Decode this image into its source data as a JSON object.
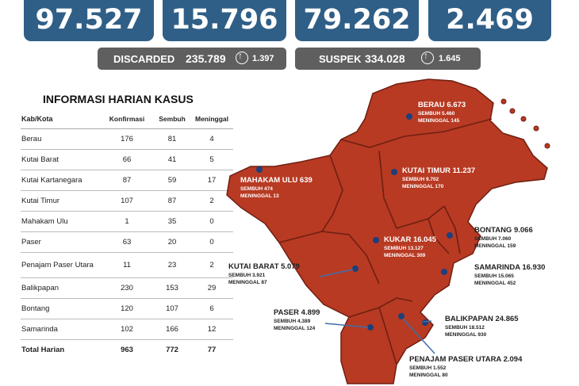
{
  "top_stats": [
    "97.527",
    "15.796",
    "79.262",
    "2.469"
  ],
  "discarded": {
    "label": "DISCARDED",
    "value": "235.789",
    "change": "1.397"
  },
  "suspek": {
    "label": "SUSPEK",
    "value": "334.028",
    "change": "1.645"
  },
  "table": {
    "title": "INFORMASI HARIAN KASUS",
    "headers": [
      "Kab/Kota",
      "Konfirmasi",
      "Sembuh",
      "Meninggal"
    ],
    "rows": [
      [
        "Berau",
        "176",
        "81",
        "4"
      ],
      [
        "Kutai Barat",
        "66",
        "41",
        "5"
      ],
      [
        "Kutai Kartanegara",
        "87",
        "59",
        "17"
      ],
      [
        "Kutai Timur",
        "107",
        "87",
        "2"
      ],
      [
        "Mahakam Ulu",
        "1",
        "35",
        "0"
      ],
      [
        "Paser",
        "63",
        "20",
        "0"
      ],
      [
        "Penajam Paser Utara",
        "11",
        "23",
        "2"
      ],
      [
        "Balikpapan",
        "230",
        "153",
        "29"
      ],
      [
        "Bontang",
        "120",
        "107",
        "6"
      ],
      [
        "Samarinda",
        "102",
        "166",
        "12"
      ]
    ],
    "total": [
      "Total Harian",
      "963",
      "772",
      "77"
    ]
  },
  "regions": {
    "berau": {
      "title": "BERAU  6.673",
      "sembuh": "SEMBUH 5.460",
      "meninggal": "MENINGGAL 145"
    },
    "kutai_timur": {
      "title": "KUTAI TIMUR 11.237",
      "sembuh": "SEMBUH 9.702",
      "meninggal": "MENINGGAL 170"
    },
    "mahakam_ulu": {
      "title": "MAHAKAM ULU  639",
      "sembuh": "SEMBUH 474",
      "meninggal": "MENINGGAL 13"
    },
    "bontang": {
      "title": "BONTANG  9.066",
      "sembuh": "SEMBUH 7.060",
      "meninggal": "MENINGGAL 159"
    },
    "kukar": {
      "title": "KUKAR 16.045",
      "sembuh": "SEMBUH 13.127",
      "meninggal": "MENINGGAL 309"
    },
    "samarinda": {
      "title": "SAMARINDA  16.930",
      "sembuh": "SEMBUH 15.065",
      "meninggal": "MENINGGAL 452"
    },
    "kutai_barat": {
      "title": "KUTAI BARAT 5.079",
      "sembuh": "SEMBUH 3.921",
      "meninggal": "MENINGGAL 87"
    },
    "paser": {
      "title": "PASER  4.899",
      "sembuh": "SEMBUH 4.389",
      "meninggal": "MENINGGAL 124"
    },
    "balikpapan": {
      "title": "BALIKPAPAN  24.865",
      "sembuh": "SEMBUH 18.512",
      "meninggal": "MENINGGAL 930"
    },
    "ppu": {
      "title": "PENAJAM PASER UTARA 2.094",
      "sembuh": "SEMBUH 1.552",
      "meninggal": "MENINGGAL 80"
    }
  },
  "colors": {
    "box": "#2f5f87",
    "map": "#b83a23",
    "subbox": "#5f5f5f"
  }
}
